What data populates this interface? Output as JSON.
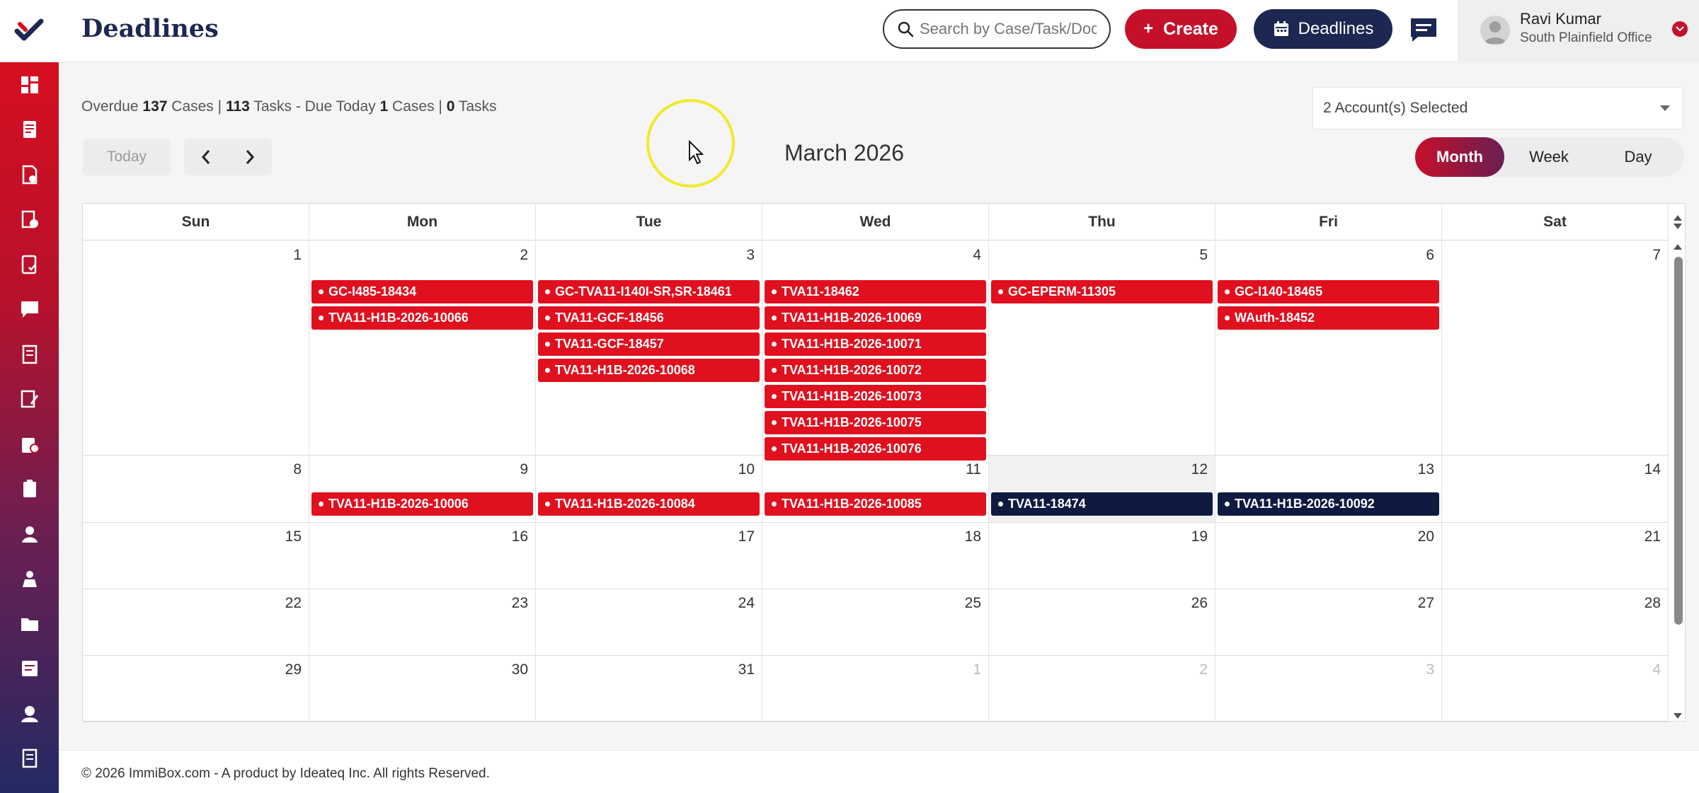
{
  "header": {
    "title": "Deadlines",
    "search_placeholder": "Search by Case/Task/Docu",
    "create_label": "Create",
    "deadlines_label": "Deadlines"
  },
  "user": {
    "name": "Ravi Kumar",
    "office": "South Plainfield Office"
  },
  "summary": {
    "overdue_label": "Overdue",
    "overdue_cases": "137",
    "cases_label": "Cases |",
    "overdue_tasks": "113",
    "tasks_label": "Tasks - Due Today",
    "due_cases": "1",
    "due_cases_label": "Cases |",
    "due_tasks": "0",
    "due_tasks_label": "Tasks"
  },
  "account_select": "2 Account(s) Selected",
  "toolbar": {
    "today": "Today",
    "month_title": "March 2026",
    "views": [
      "Month",
      "Week",
      "Day"
    ],
    "active_view": "Month"
  },
  "weekdays": [
    "Sun",
    "Mon",
    "Tue",
    "Wed",
    "Thu",
    "Fri",
    "Sat"
  ],
  "weeks": [
    {
      "days": [
        {
          "num": "1",
          "events": []
        },
        {
          "num": "2",
          "events": [
            {
              "label": "GC-I485-18434",
              "status": "overdue"
            },
            {
              "label": "TVA11-H1B-2026-10066",
              "status": "overdue"
            }
          ]
        },
        {
          "num": "3",
          "events": [
            {
              "label": "GC-TVA11-I140I-SR,SR-18461",
              "status": "overdue"
            },
            {
              "label": "TVA11-GCF-18456",
              "status": "overdue"
            },
            {
              "label": "TVA11-GCF-18457",
              "status": "overdue"
            },
            {
              "label": "TVA11-H1B-2026-10068",
              "status": "overdue"
            }
          ]
        },
        {
          "num": "4",
          "events": [
            {
              "label": "TVA11-18462",
              "status": "overdue"
            },
            {
              "label": "TVA11-H1B-2026-10069",
              "status": "overdue"
            },
            {
              "label": "TVA11-H1B-2026-10071",
              "status": "overdue"
            },
            {
              "label": "TVA11-H1B-2026-10072",
              "status": "overdue"
            },
            {
              "label": "TVA11-H1B-2026-10073",
              "status": "overdue"
            },
            {
              "label": "TVA11-H1B-2026-10075",
              "status": "overdue"
            },
            {
              "label": "TVA11-H1B-2026-10076",
              "status": "overdue"
            }
          ]
        },
        {
          "num": "5",
          "events": [
            {
              "label": "GC-EPERM-11305",
              "status": "overdue"
            }
          ]
        },
        {
          "num": "6",
          "events": [
            {
              "label": "GC-I140-18465",
              "status": "overdue"
            },
            {
              "label": "WAuth-18452",
              "status": "overdue"
            }
          ]
        },
        {
          "num": "7",
          "events": []
        }
      ]
    },
    {
      "days": [
        {
          "num": "8",
          "events": []
        },
        {
          "num": "9",
          "events": [
            {
              "label": "TVA11-H1B-2026-10006",
              "status": "overdue"
            }
          ]
        },
        {
          "num": "10",
          "events": [
            {
              "label": "TVA11-H1B-2026-10084",
              "status": "overdue"
            }
          ]
        },
        {
          "num": "11",
          "events": [
            {
              "label": "TVA11-H1B-2026-10085",
              "status": "overdue"
            }
          ]
        },
        {
          "num": "12",
          "today": true,
          "events": [
            {
              "label": "TVA11-18474",
              "status": "upcoming"
            }
          ]
        },
        {
          "num": "13",
          "events": [
            {
              "label": "TVA11-H1B-2026-10092",
              "status": "upcoming"
            }
          ]
        },
        {
          "num": "14",
          "events": []
        }
      ]
    },
    {
      "days": [
        {
          "num": "15",
          "events": []
        },
        {
          "num": "16",
          "events": []
        },
        {
          "num": "17",
          "events": []
        },
        {
          "num": "18",
          "events": []
        },
        {
          "num": "19",
          "events": []
        },
        {
          "num": "20",
          "events": []
        },
        {
          "num": "21",
          "events": []
        }
      ]
    },
    {
      "days": [
        {
          "num": "22",
          "events": []
        },
        {
          "num": "23",
          "events": []
        },
        {
          "num": "24",
          "events": []
        },
        {
          "num": "25",
          "events": []
        },
        {
          "num": "26",
          "events": []
        },
        {
          "num": "27",
          "events": []
        },
        {
          "num": "28",
          "events": []
        }
      ]
    },
    {
      "days": [
        {
          "num": "29",
          "events": []
        },
        {
          "num": "30",
          "events": []
        },
        {
          "num": "31",
          "events": []
        },
        {
          "num": "1",
          "other": true,
          "events": []
        },
        {
          "num": "2",
          "other": true,
          "events": []
        },
        {
          "num": "3",
          "other": true,
          "events": []
        },
        {
          "num": "4",
          "other": true,
          "events": []
        }
      ]
    }
  ],
  "sidebar_icons": [
    "dashboard-icon",
    "cases-icon",
    "documents-icon",
    "forms-icon",
    "tasks-icon",
    "messages-icon",
    "invoices-icon",
    "notes-icon",
    "reports-icon",
    "clipboard-icon",
    "clients-icon",
    "contacts-icon",
    "folder-icon",
    "templates-icon",
    "users-icon",
    "settings-icon"
  ],
  "colors": {
    "overdue": "#e0101f",
    "upcoming": "#0f1a40",
    "brand_navy": "#1c2752",
    "brand_red": "#c5102a"
  },
  "footer": "© 2026 ImmiBox.com - A product by Ideateq Inc. All rights Reserved."
}
